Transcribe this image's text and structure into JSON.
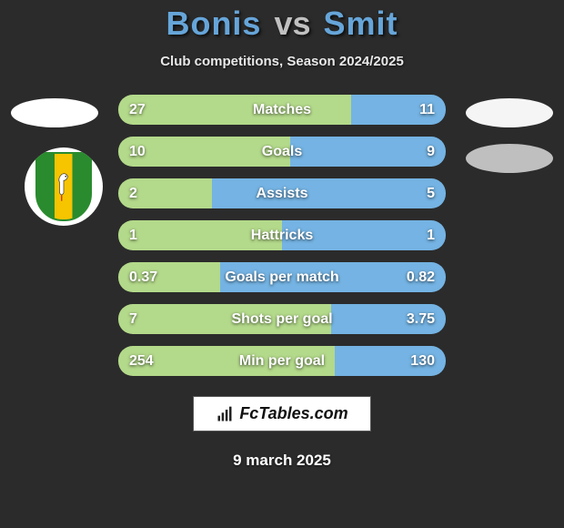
{
  "title": {
    "player1": "Bonis",
    "vs": "vs",
    "player2": "Smit",
    "player1_color": "#66a5d9",
    "player2_color": "#66a5d9"
  },
  "subtitle": "Club competitions, Season 2024/2025",
  "colors": {
    "player1_bar": "#b3d98a",
    "player2_bar": "#74b3e3",
    "bar_border": "#aadf6e"
  },
  "stats": [
    {
      "label": "Matches",
      "val1": "27",
      "val2": "11",
      "v1": 27,
      "v2": 11
    },
    {
      "label": "Goals",
      "val1": "10",
      "val2": "9",
      "v1": 10,
      "v2": 9
    },
    {
      "label": "Assists",
      "val1": "2",
      "val2": "5",
      "v1": 2,
      "v2": 5
    },
    {
      "label": "Hattricks",
      "val1": "1",
      "val2": "1",
      "v1": 1,
      "v2": 1
    },
    {
      "label": "Goals per match",
      "val1": "0.37",
      "val2": "0.82",
      "v1": 0.37,
      "v2": 0.82
    },
    {
      "label": "Shots per goal",
      "val1": "7",
      "val2": "3.75",
      "v1": 7,
      "v2": 3.75
    },
    {
      "label": "Min per goal",
      "val1": "254",
      "val2": "130",
      "v1": 254,
      "v2": 130
    }
  ],
  "branding": "FcTables.com",
  "date": "9 march 2025"
}
